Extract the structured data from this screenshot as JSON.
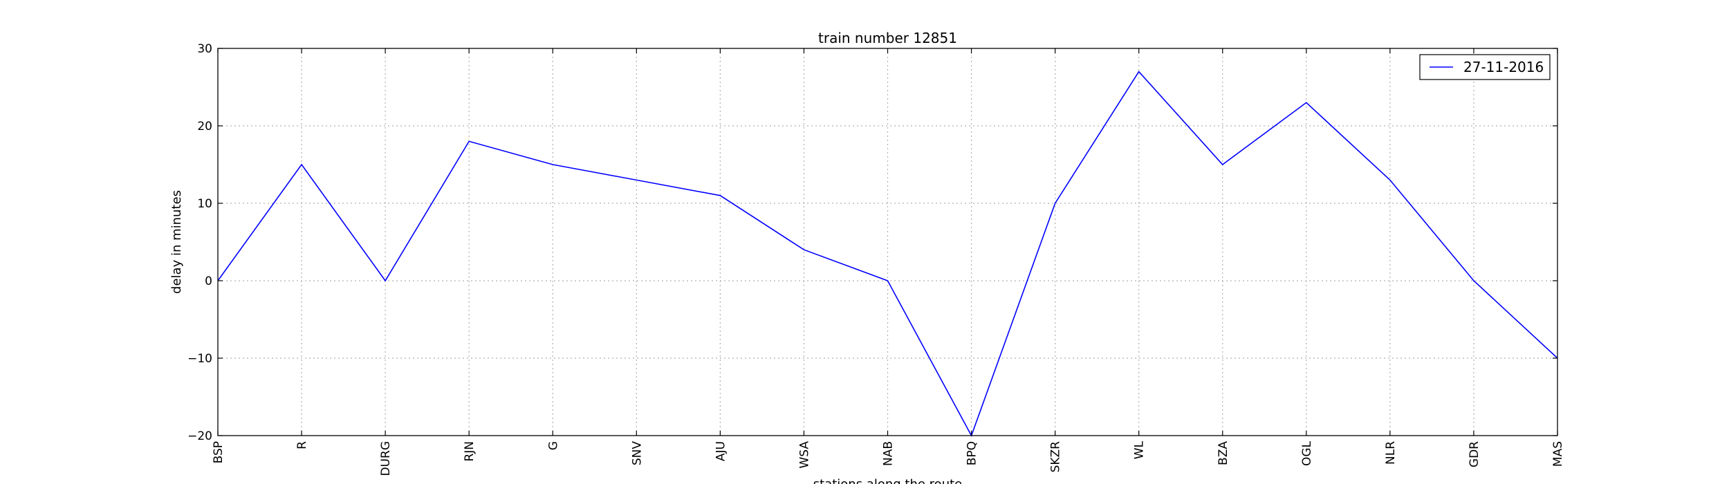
{
  "chart_data": {
    "type": "line",
    "title": "train number 12851",
    "xlabel": "stations along the route",
    "ylabel": "delay in minutes",
    "ylim": [
      -20,
      30
    ],
    "yticks": [
      -20,
      -10,
      0,
      10,
      20,
      30
    ],
    "grid": true,
    "legend_position": "top-right",
    "categories": [
      "BSP",
      "R",
      "DURG",
      "RJN",
      "G",
      "SNV",
      "AJU",
      "WSA",
      "NAB",
      "BPQ",
      "SKZR",
      "WL",
      "BZA",
      "OGL",
      "NLR",
      "GDR",
      "MAS"
    ],
    "series": [
      {
        "name": "27-11-2016",
        "color": "#0000ff",
        "values": [
          0,
          15,
          0,
          18,
          15,
          13,
          11,
          4,
          0,
          -20,
          10,
          27,
          15,
          23,
          13,
          0,
          -10
        ]
      }
    ]
  }
}
